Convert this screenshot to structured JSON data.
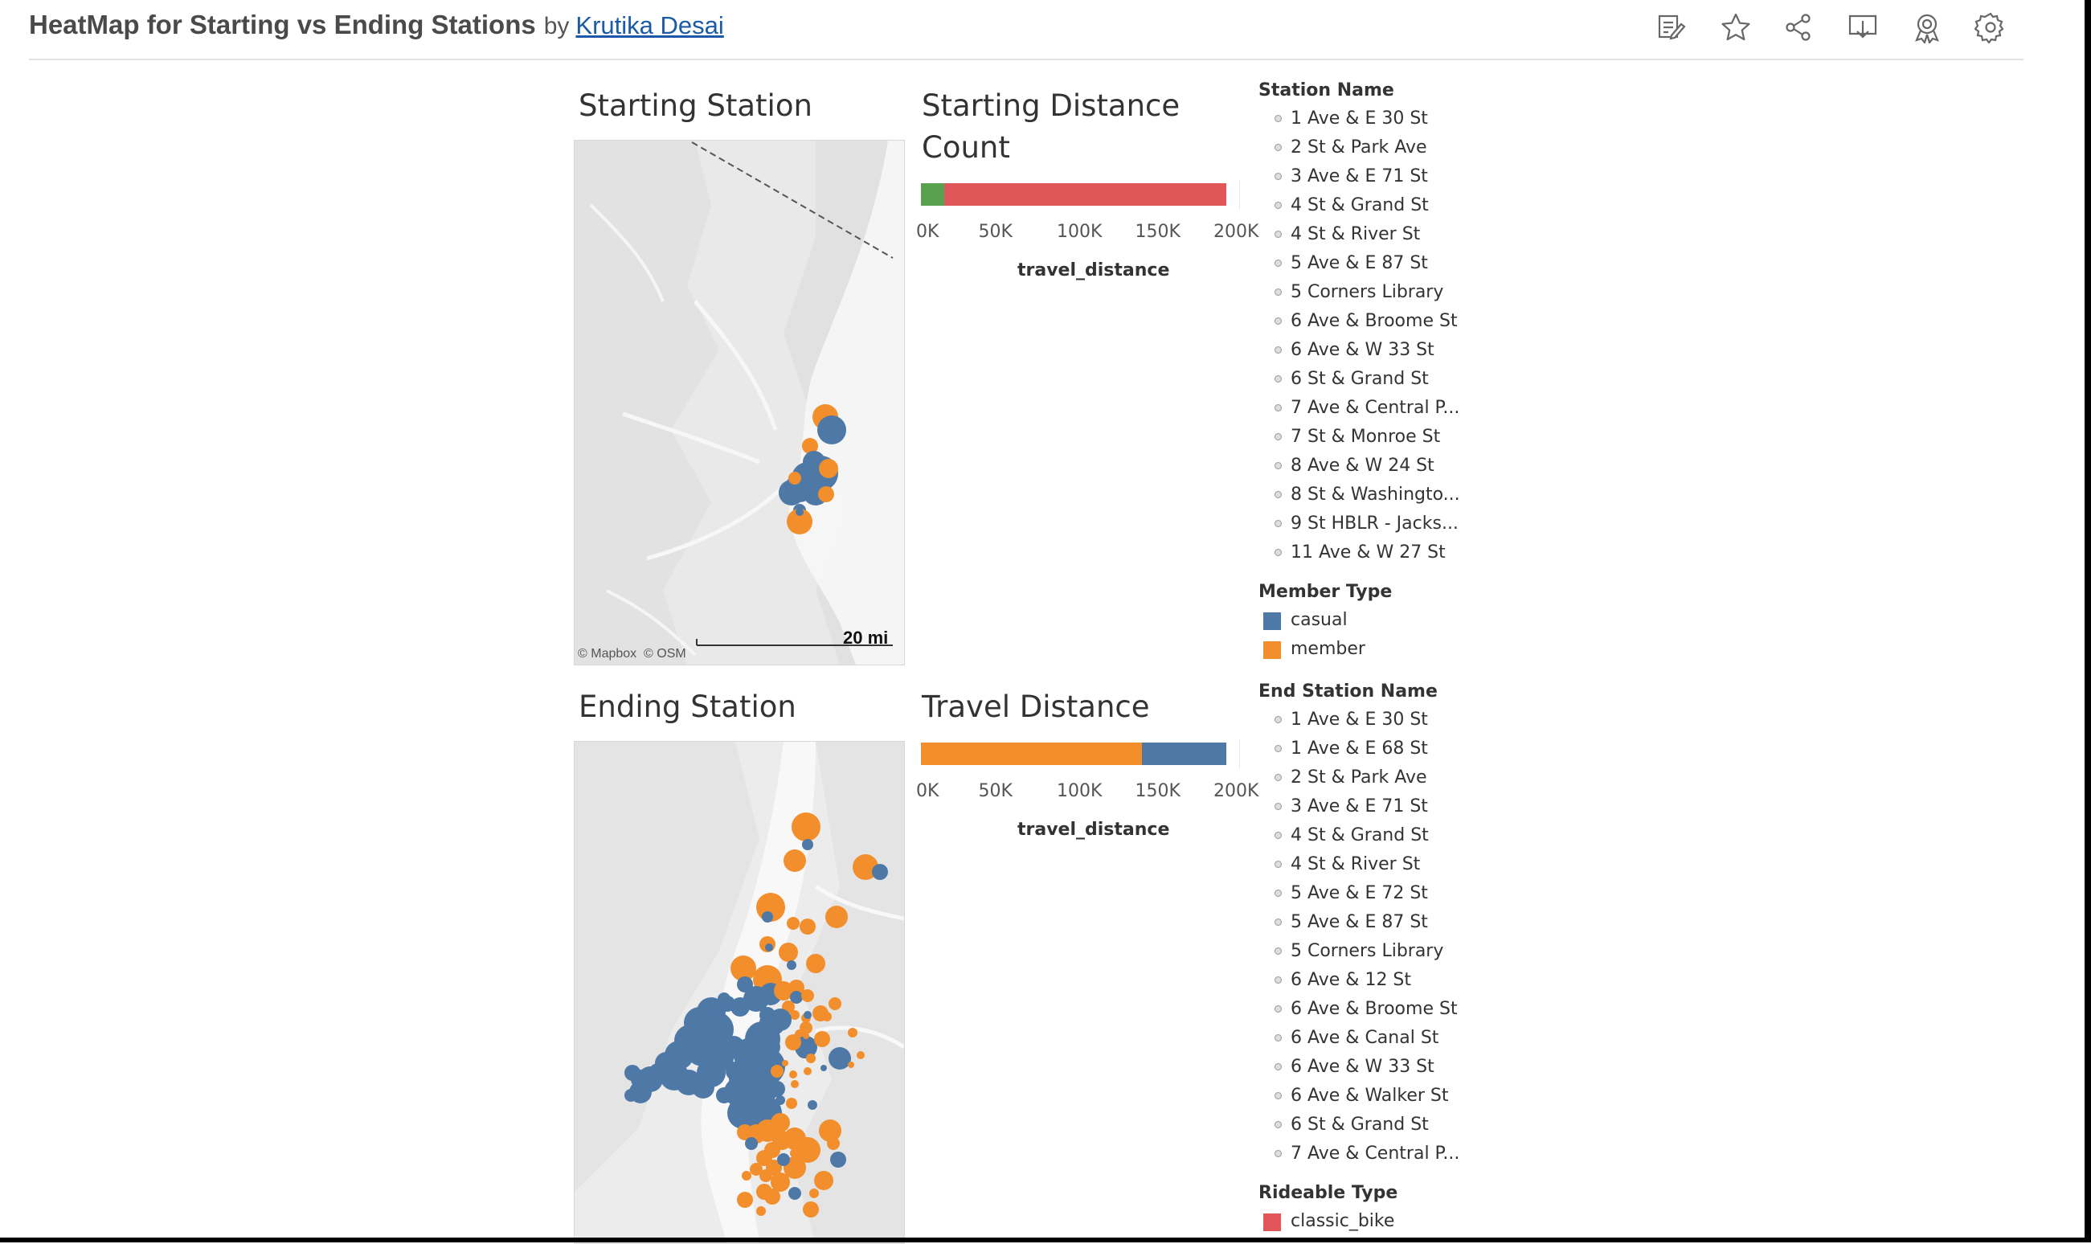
{
  "header": {
    "title": "HeatMap for Starting vs Ending Stations",
    "by": "by",
    "author": "Krutika Desai",
    "icons": [
      "edit-icon",
      "star-icon",
      "share-icon",
      "download-icon",
      "badge-icon",
      "settings-icon"
    ]
  },
  "starting_map": {
    "title": "Starting Station",
    "attribution_mapbox": "© Mapbox",
    "attribution_osm": "© OSM",
    "scale": "20 mi"
  },
  "ending_map": {
    "title": "Ending Station"
  },
  "colors": {
    "casual": "#4e79a7",
    "member": "#f28e2b",
    "classic_bike": "#e15759",
    "green_segment": "#59a14f"
  },
  "chart_data": [
    {
      "type": "bar",
      "title": "Starting Distance Count",
      "xlabel": "travel_distance",
      "ticks": [
        "0K",
        "50K",
        "100K",
        "150K",
        "200K"
      ],
      "xlim": [
        0,
        200000
      ],
      "series": [
        {
          "color": "#59a14f",
          "value": 15000
        },
        {
          "color": "#e15759",
          "value": 180000
        }
      ]
    },
    {
      "type": "bar",
      "title": "Travel Distance",
      "xlabel": "travel_distance",
      "ticks": [
        "0K",
        "50K",
        "100K",
        "150K",
        "200K"
      ],
      "xlim": [
        0,
        200000
      ],
      "series": [
        {
          "name": "member",
          "color": "#f28e2b",
          "value": 141000
        },
        {
          "name": "casual",
          "color": "#4e79a7",
          "value": 54000
        }
      ]
    }
  ],
  "legends": {
    "station_name": {
      "title": "Station Name",
      "items": [
        "1 Ave & E 30 St",
        "2 St & Park Ave",
        "3 Ave & E 71 St",
        "4 St & Grand St",
        "4 St & River St",
        "5 Ave & E 87 St",
        "5 Corners Library",
        "6 Ave & Broome St",
        "6 Ave & W 33 St",
        "6 St & Grand St",
        "7 Ave & Central P...",
        "7 St & Monroe St",
        "8 Ave & W 24 St",
        "8 St & Washingto...",
        "9 St HBLR - Jacks...",
        "11 Ave & W 27 St"
      ]
    },
    "member_type": {
      "title": "Member Type",
      "items": [
        {
          "label": "casual",
          "color": "#4e79a7"
        },
        {
          "label": "member",
          "color": "#f28e2b"
        }
      ]
    },
    "end_station_name": {
      "title": "End Station Name",
      "items": [
        "1 Ave & E 30 St",
        "1 Ave & E 68 St",
        "2 St & Park Ave",
        "3 Ave & E 71 St",
        "4 St & Grand St",
        "4 St & River St",
        "5 Ave & E 72 St",
        "5 Ave & E 87 St",
        "5 Corners Library",
        "6 Ave & 12 St",
        "6 Ave & Broome St",
        "6 Ave & Canal St",
        "6 Ave & W 33 St",
        "6 Ave & Walker St",
        "6 St & Grand St",
        "7 Ave & Central P..."
      ]
    },
    "rideable_type": {
      "title": "Rideable Type",
      "items": [
        {
          "label": "classic_bike",
          "color": "#e15759"
        }
      ]
    }
  }
}
